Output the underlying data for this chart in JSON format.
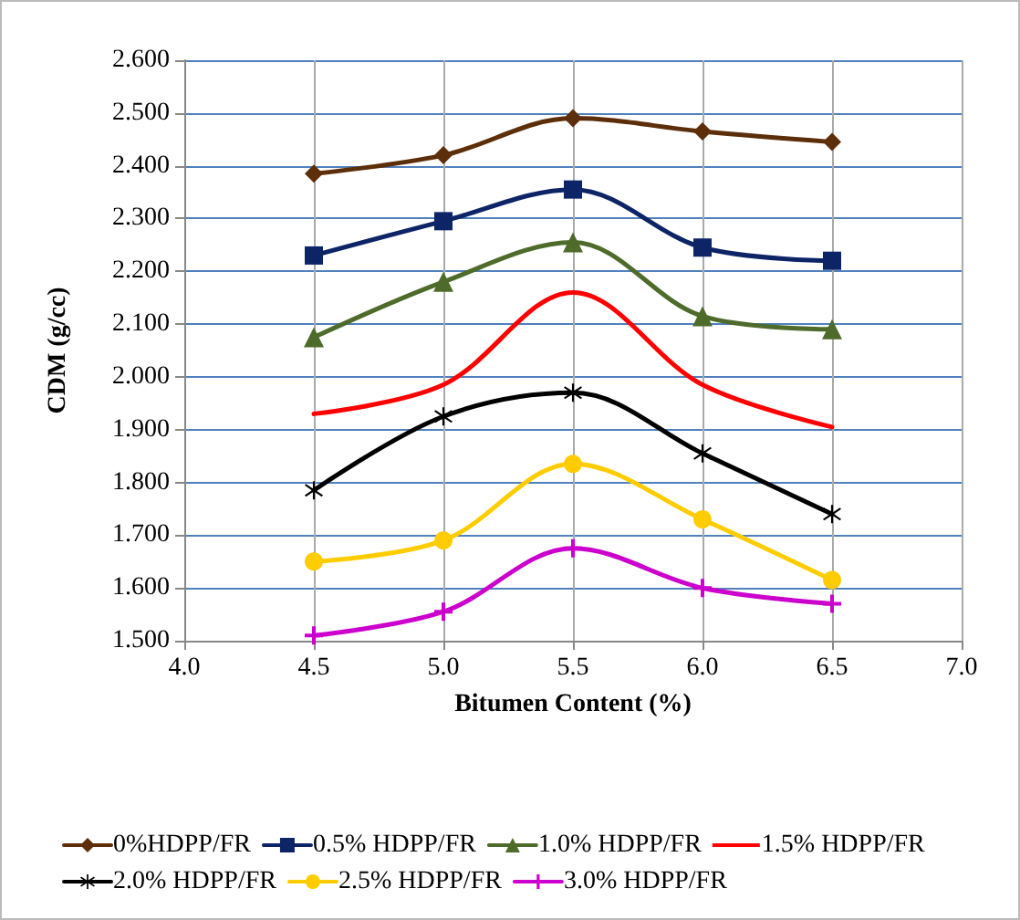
{
  "chart_data": {
    "type": "line",
    "xlabel": "Bitumen Content (%)",
    "ylabel": "CDM (g/cc)",
    "x": [
      4.5,
      5.0,
      5.5,
      6.0,
      6.5
    ],
    "xlim": [
      4.0,
      7.0
    ],
    "xticks": [
      {
        "value": 4,
        "label": "4.0"
      },
      {
        "value": 4.5,
        "label": "4.5"
      },
      {
        "value": 5,
        "label": "5.0"
      },
      {
        "value": 5.5,
        "label": "5.5"
      },
      {
        "value": 6,
        "label": "6.0"
      },
      {
        "value": 6.5,
        "label": "6.5"
      },
      {
        "value": 7,
        "label": "7.0"
      }
    ],
    "ylim": [
      1.5,
      2.6
    ],
    "yticks": [
      {
        "value": 1.5,
        "label": "1.500"
      },
      {
        "value": 1.6,
        "label": "1.600"
      },
      {
        "value": 1.7,
        "label": "1.700"
      },
      {
        "value": 1.8,
        "label": "1.800"
      },
      {
        "value": 1.9,
        "label": "1.900"
      },
      {
        "value": 2.0,
        "label": "2.000"
      },
      {
        "value": 2.1,
        "label": "2.100"
      },
      {
        "value": 2.2,
        "label": "2.200"
      },
      {
        "value": 2.3,
        "label": "2.300"
      },
      {
        "value": 2.4,
        "label": "2.400"
      },
      {
        "value": 2.5,
        "label": "2.500"
      },
      {
        "value": 2.6,
        "label": "2.600"
      }
    ],
    "grid": true,
    "legend": "bottom",
    "series": [
      {
        "name": "0%HDPP/FR",
        "color": "#5c2e0a",
        "marker": "diamond",
        "values": [
          2.385,
          2.42,
          2.49,
          2.465,
          2.445
        ]
      },
      {
        "name": "0.5% HDPP/FR",
        "color": "#0d2466",
        "marker": "square",
        "values": [
          2.23,
          2.295,
          2.355,
          2.245,
          2.22
        ]
      },
      {
        "name": "1.0% HDPP/FR",
        "color": "#4e6b2c",
        "marker": "triangle",
        "values": [
          2.075,
          2.18,
          2.255,
          2.115,
          2.09
        ]
      },
      {
        "name": "1.5% HDPP/FR",
        "color": "#ff0000",
        "marker": "none",
        "values": [
          1.93,
          1.985,
          2.16,
          1.985,
          1.905
        ]
      },
      {
        "name": "2.0% HDPP/FR",
        "color": "#000000",
        "marker": "star",
        "values": [
          1.785,
          1.925,
          1.97,
          1.855,
          1.74
        ]
      },
      {
        "name": "2.5% HDPP/FR",
        "color": "#ffcc00",
        "marker": "circle",
        "values": [
          1.65,
          1.69,
          1.835,
          1.73,
          1.615
        ]
      },
      {
        "name": "3.0% HDPP/FR",
        "color": "#cc00cc",
        "marker": "cross",
        "values": [
          1.51,
          1.555,
          1.675,
          1.6,
          1.57
        ]
      }
    ]
  }
}
